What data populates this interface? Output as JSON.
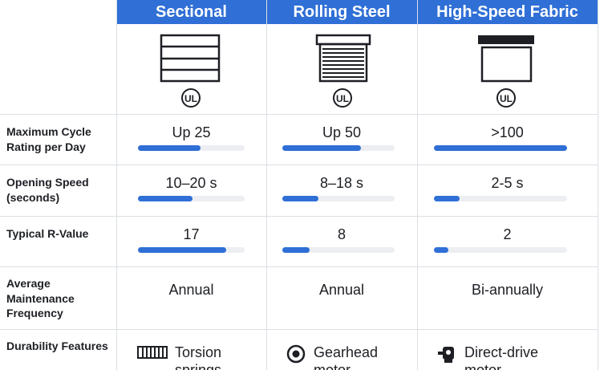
{
  "header": {
    "columns": [
      "Sectional",
      "Rolling Steel",
      "High-Speed Fabric"
    ]
  },
  "certification": "UL",
  "table": {
    "rows": [
      {
        "label": "Maximum Cycle Rating per Day",
        "cells": [
          {
            "text": "Up 25",
            "bar": 59
          },
          {
            "text": "Up 50",
            "bar": 70
          },
          {
            "text": ">100",
            "bar": 100
          }
        ]
      },
      {
        "label": "Opening Speed (seconds)",
        "cells": [
          {
            "text": "10–20 s",
            "bar": 51
          },
          {
            "text": "8–18 s",
            "bar": 32
          },
          {
            "text": "2-5 s",
            "bar": 19
          }
        ]
      },
      {
        "label": "Typical R-Value",
        "cells": [
          {
            "text": "17",
            "bar": 83
          },
          {
            "text": "8",
            "bar": 24
          },
          {
            "text": "2",
            "bar": 11
          }
        ]
      },
      {
        "label": "Average Maintenance Frequency",
        "cells": [
          {
            "text": "Annual"
          },
          {
            "text": "Annual"
          },
          {
            "text": "Bi-annually"
          }
        ]
      },
      {
        "label": "Durability Features",
        "cells": [
          {
            "text": "Torsion springs"
          },
          {
            "text": "Gearhead motor"
          },
          {
            "text": "Direct-drive motor"
          }
        ]
      }
    ]
  }
}
